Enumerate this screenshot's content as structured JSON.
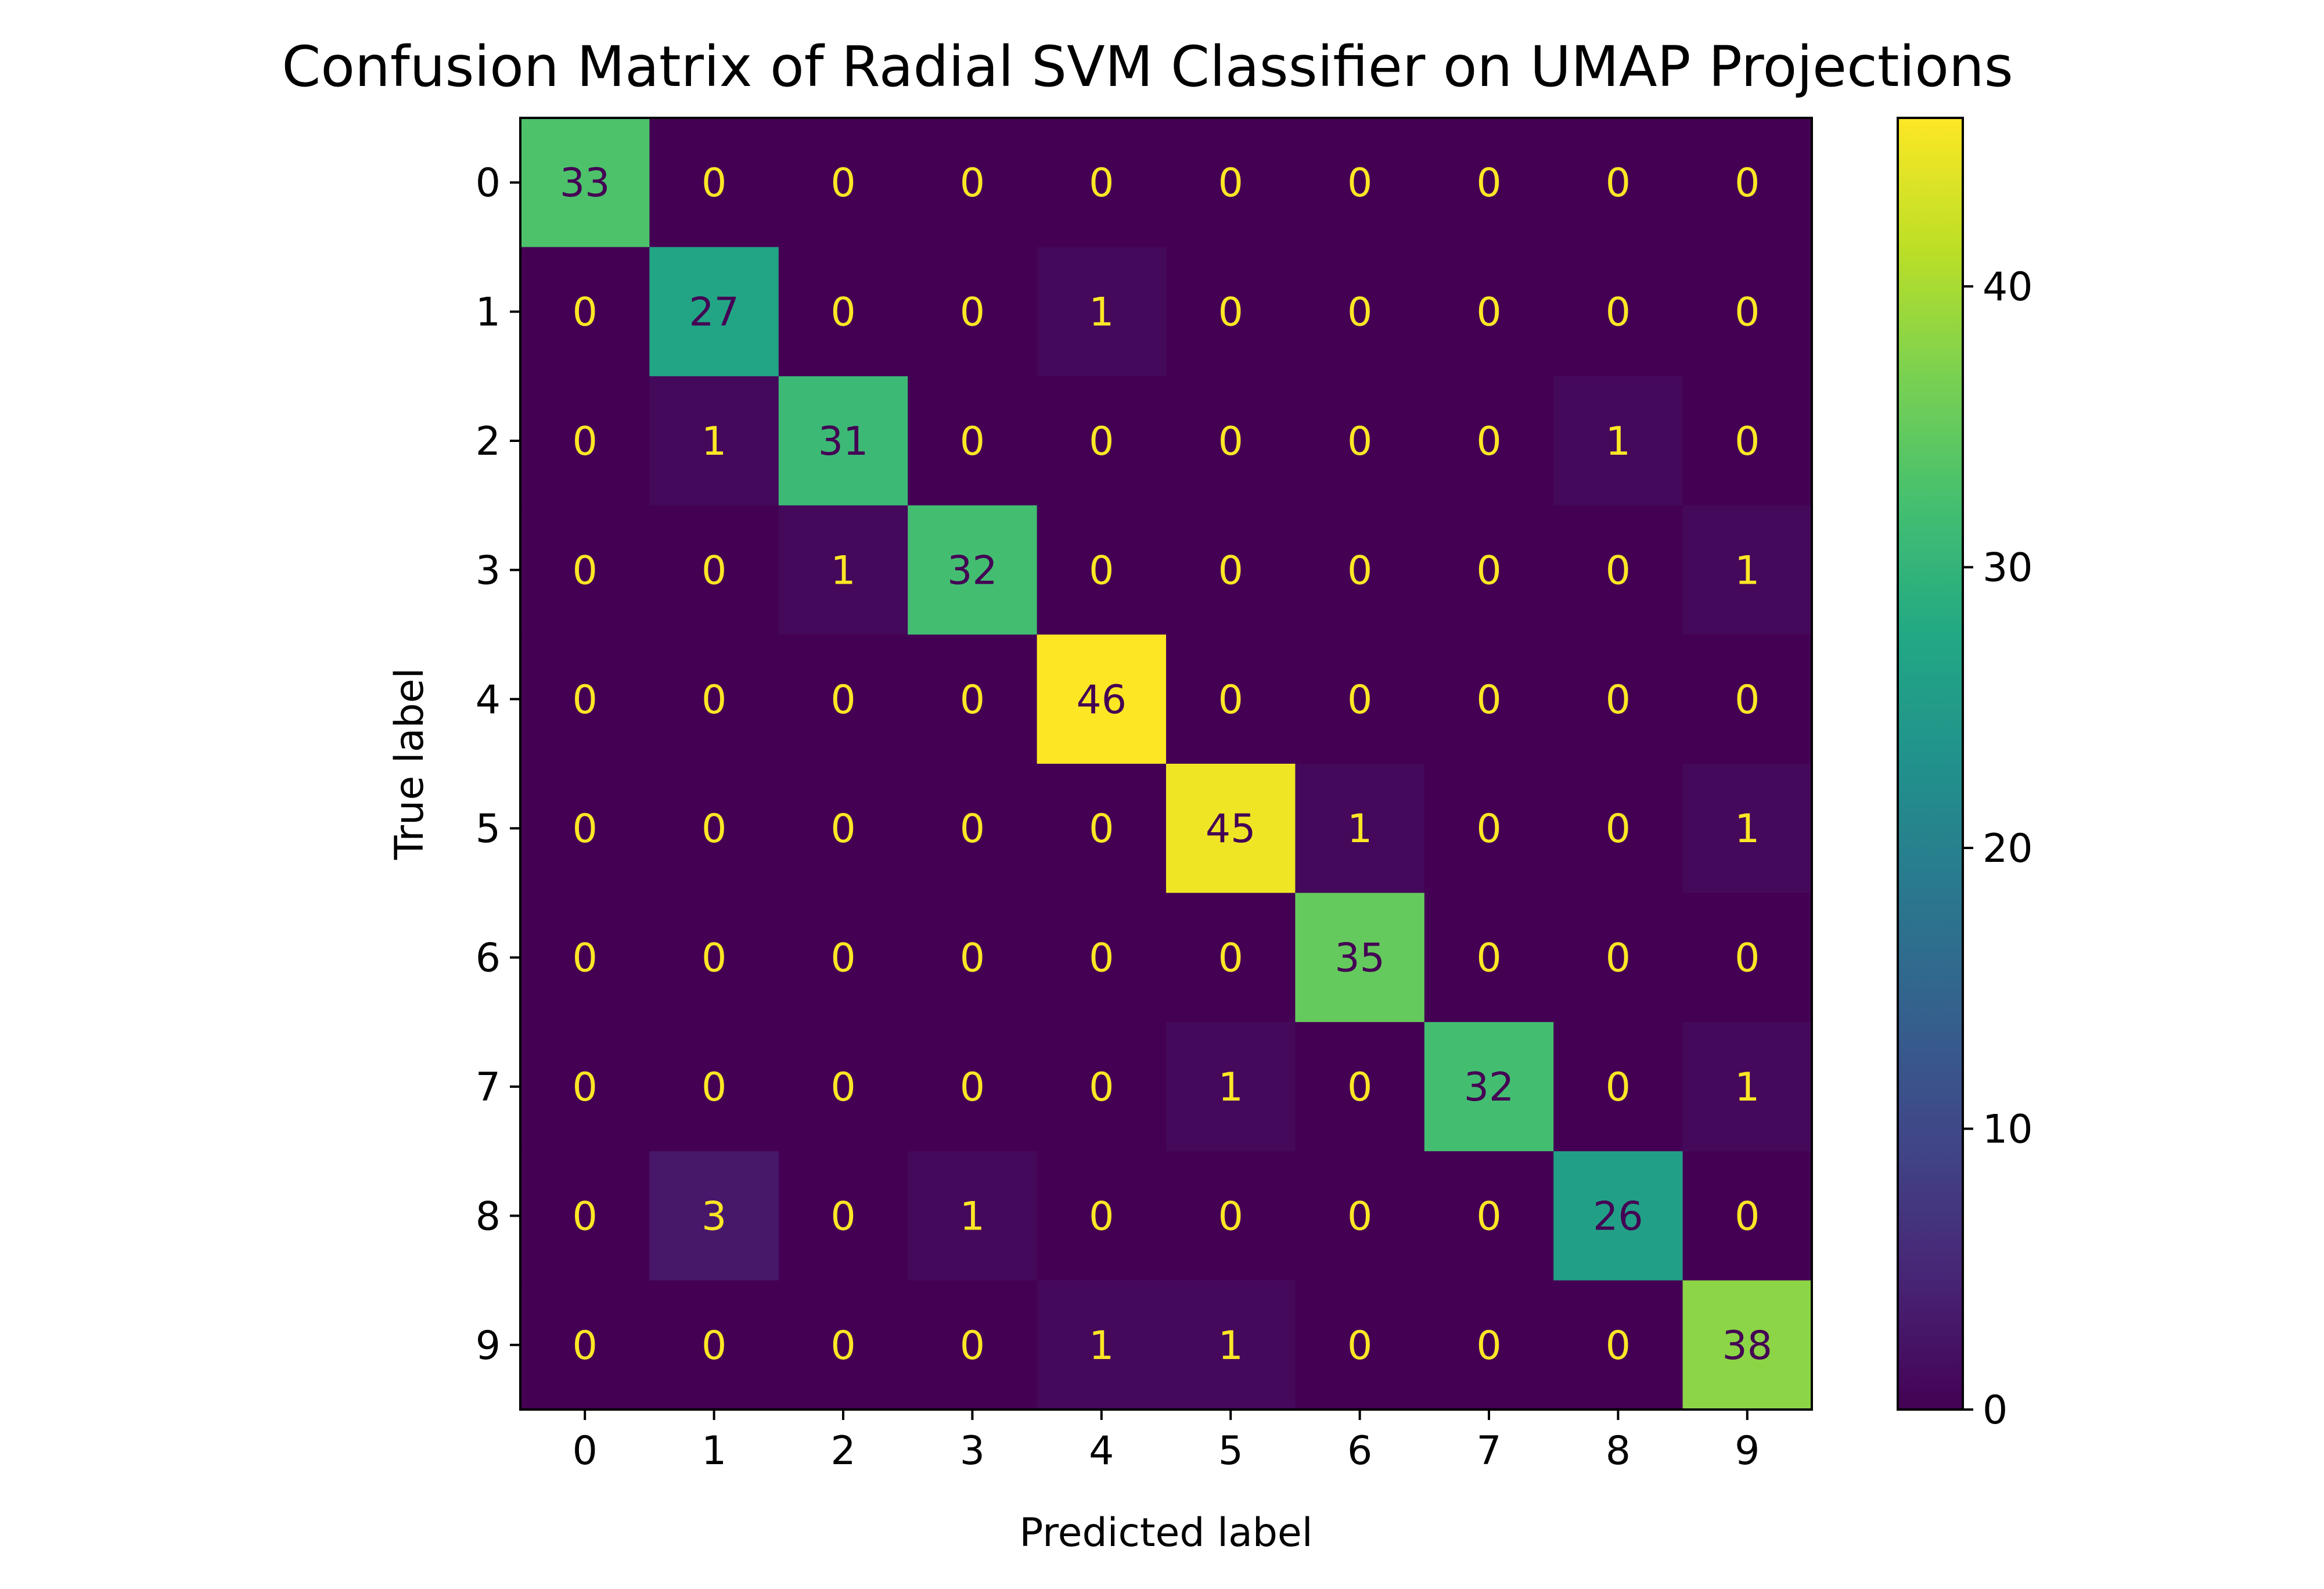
{
  "chart_data": {
    "type": "heatmap",
    "title": "Confusion Matrix of Radial SVM Classifier on UMAP Projections",
    "xlabel": "Predicted label",
    "ylabel": "True label",
    "x_ticks": [
      "0",
      "1",
      "2",
      "3",
      "4",
      "5",
      "6",
      "7",
      "8",
      "9"
    ],
    "y_ticks": [
      "0",
      "1",
      "2",
      "3",
      "4",
      "5",
      "6",
      "7",
      "8",
      "9"
    ],
    "matrix": [
      [
        33,
        0,
        0,
        0,
        0,
        0,
        0,
        0,
        0,
        0
      ],
      [
        0,
        27,
        0,
        0,
        1,
        0,
        0,
        0,
        0,
        0
      ],
      [
        0,
        1,
        31,
        0,
        0,
        0,
        0,
        0,
        1,
        0
      ],
      [
        0,
        0,
        1,
        32,
        0,
        0,
        0,
        0,
        0,
        1
      ],
      [
        0,
        0,
        0,
        0,
        46,
        0,
        0,
        0,
        0,
        0
      ],
      [
        0,
        0,
        0,
        0,
        0,
        45,
        1,
        0,
        0,
        1
      ],
      [
        0,
        0,
        0,
        0,
        0,
        0,
        35,
        0,
        0,
        0
      ],
      [
        0,
        0,
        0,
        0,
        0,
        1,
        0,
        32,
        0,
        1
      ],
      [
        0,
        3,
        0,
        1,
        0,
        0,
        0,
        0,
        26,
        0
      ],
      [
        0,
        0,
        0,
        0,
        1,
        1,
        0,
        0,
        0,
        38
      ]
    ],
    "colormap": "viridis",
    "vmin": 0,
    "vmax": 46,
    "colorbar_ticks": [
      "0",
      "10",
      "20",
      "30",
      "40"
    ],
    "light_text_color": "#fde725",
    "dark_text_color": "#440154",
    "grid": false
  }
}
